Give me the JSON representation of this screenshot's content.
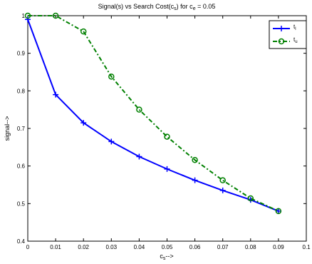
{
  "chart_data": {
    "type": "line",
    "title_parts": {
      "t1": "Signal(s) vs Search Cost(c",
      "t1sub": "s",
      "t2": ") for c",
      "t2sub": "e",
      "t3": " = 0.05"
    },
    "xlabel": {
      "text": "c",
      "sub": "s",
      "suffix": "-->"
    },
    "ylabel": "signal-->",
    "xlim": [
      0,
      0.1
    ],
    "ylim": [
      0.4,
      1
    ],
    "xticks": [
      "0",
      "0.01",
      "0.02",
      "0.03",
      "0.04",
      "0.05",
      "0.06",
      "0.07",
      "0.08",
      "0.09",
      "0.1"
    ],
    "xtick_values": [
      0,
      0.01,
      0.02,
      0.03,
      0.04,
      0.05,
      0.06,
      0.07,
      0.08,
      0.09,
      0.1
    ],
    "yticks": [
      "0.4",
      "0.5",
      "0.6",
      "0.7",
      "0.8",
      "0.9",
      "1"
    ],
    "ytick_values": [
      0.4,
      0.5,
      0.6,
      0.7,
      0.8,
      0.9,
      1
    ],
    "grid": false,
    "legend_position": "top-right",
    "x": [
      0,
      0.01,
      0.02,
      0.03,
      0.04,
      0.05,
      0.06,
      0.07,
      0.08,
      0.09
    ],
    "series": [
      {
        "name": "t",
        "name_sub": "l",
        "color": "#0000ff",
        "line_style": "solid",
        "marker": "plus",
        "values": [
          0.99,
          0.79,
          0.715,
          0.665,
          0.625,
          0.592,
          0.562,
          0.535,
          0.51,
          0.48
        ]
      },
      {
        "name": "t",
        "name_sub": "u",
        "color": "#008000",
        "line_style": "dash-dot",
        "marker": "circle",
        "values": [
          1.0,
          1.0,
          0.958,
          0.838,
          0.75,
          0.678,
          0.616,
          0.562,
          0.514,
          0.48
        ]
      }
    ]
  }
}
